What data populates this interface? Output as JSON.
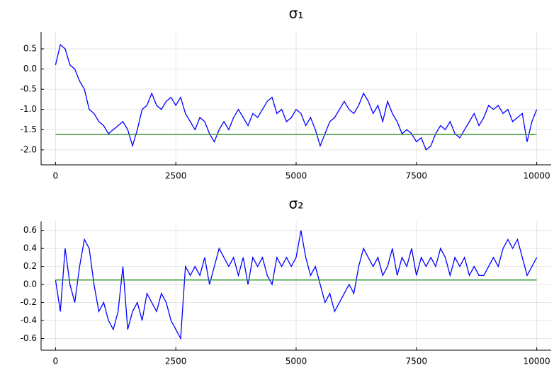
{
  "chart_data": [
    {
      "type": "line",
      "title": "σ₁",
      "x": [
        0,
        100,
        200,
        300,
        400,
        500,
        600,
        700,
        800,
        900,
        1000,
        1100,
        1200,
        1300,
        1400,
        1500,
        1600,
        1700,
        1800,
        1900,
        2000,
        2100,
        2200,
        2300,
        2400,
        2500,
        2600,
        2700,
        2800,
        2900,
        3000,
        3100,
        3200,
        3300,
        3400,
        3500,
        3600,
        3700,
        3800,
        3900,
        4000,
        4100,
        4200,
        4300,
        4400,
        4500,
        4600,
        4700,
        4800,
        4900,
        5000,
        5100,
        5200,
        5300,
        5400,
        5500,
        5600,
        5700,
        5800,
        5900,
        6000,
        6100,
        6200,
        6300,
        6400,
        6500,
        6600,
        6700,
        6800,
        6900,
        7000,
        7100,
        7200,
        7300,
        7400,
        7500,
        7600,
        7700,
        7800,
        7900,
        8000,
        8100,
        8200,
        8300,
        8400,
        8500,
        8600,
        8700,
        8800,
        8900,
        9000,
        9100,
        9200,
        9300,
        9400,
        9500,
        9600,
        9700,
        9800,
        9900,
        10000
      ],
      "values": [
        0.1,
        0.6,
        0.5,
        0.1,
        0.0,
        -0.3,
        -0.5,
        -1.0,
        -1.1,
        -1.3,
        -1.4,
        -1.6,
        -1.5,
        -1.4,
        -1.3,
        -1.5,
        -1.9,
        -1.5,
        -1.0,
        -0.9,
        -0.6,
        -0.9,
        -1.0,
        -0.8,
        -0.7,
        -0.9,
        -0.7,
        -1.1,
        -1.3,
        -1.5,
        -1.2,
        -1.3,
        -1.6,
        -1.8,
        -1.5,
        -1.3,
        -1.5,
        -1.2,
        -1.0,
        -1.2,
        -1.4,
        -1.1,
        -1.2,
        -1.0,
        -0.8,
        -0.7,
        -1.1,
        -1.0,
        -1.3,
        -1.2,
        -1.0,
        -1.1,
        -1.4,
        -1.2,
        -1.5,
        -1.9,
        -1.6,
        -1.3,
        -1.2,
        -1.0,
        -0.8,
        -1.0,
        -1.1,
        -0.9,
        -0.6,
        -0.8,
        -1.1,
        -0.9,
        -1.3,
        -0.8,
        -1.1,
        -1.3,
        -1.6,
        -1.5,
        -1.6,
        -1.8,
        -1.7,
        -2.0,
        -1.9,
        -1.6,
        -1.4,
        -1.5,
        -1.3,
        -1.6,
        -1.7,
        -1.5,
        -1.3,
        -1.1,
        -1.4,
        -1.2,
        -0.9,
        -1.0,
        -0.9,
        -1.1,
        -1.0,
        -1.3,
        -1.2,
        -1.1,
        -1.8,
        -1.3,
        -1.0
      ],
      "color": "#0000ff",
      "hline": -1.62,
      "hline_color": "#3a9a3a",
      "xlim": [
        -300,
        10300
      ],
      "xticks": [
        0,
        2500,
        5000,
        7500,
        10000
      ],
      "ylim": [
        -2.37,
        0.92
      ],
      "yticks": [
        0.5,
        {
          "value": 0,
          "label": "0.0"
        },
        -0.5,
        {
          "value": -1,
          "label": "-1.0"
        },
        -1.5,
        {
          "value": -2,
          "label": "-2.0"
        }
      ],
      "grid": true
    },
    {
      "type": "line",
      "title": "σ₂",
      "x": [
        0,
        100,
        200,
        300,
        400,
        500,
        600,
        700,
        800,
        900,
        1000,
        1100,
        1200,
        1300,
        1400,
        1500,
        1600,
        1700,
        1800,
        1900,
        2000,
        2100,
        2200,
        2300,
        2400,
        2500,
        2600,
        2700,
        2800,
        2900,
        3000,
        3100,
        3200,
        3300,
        3400,
        3500,
        3600,
        3700,
        3800,
        3900,
        4000,
        4100,
        4200,
        4300,
        4400,
        4500,
        4600,
        4700,
        4800,
        4900,
        5000,
        5100,
        5200,
        5300,
        5400,
        5500,
        5600,
        5700,
        5800,
        5900,
        6000,
        6100,
        6200,
        6300,
        6400,
        6500,
        6600,
        6700,
        6800,
        6900,
        7000,
        7100,
        7200,
        7300,
        7400,
        7500,
        7600,
        7700,
        7800,
        7900,
        8000,
        8100,
        8200,
        8300,
        8400,
        8500,
        8600,
        8700,
        8800,
        8900,
        9000,
        9100,
        9200,
        9300,
        9400,
        9500,
        9600,
        9700,
        9800,
        9900,
        10000
      ],
      "values": [
        0.05,
        -0.3,
        0.4,
        0.0,
        -0.2,
        0.2,
        0.5,
        0.4,
        0.0,
        -0.3,
        -0.2,
        -0.4,
        -0.5,
        -0.3,
        0.2,
        -0.5,
        -0.3,
        -0.2,
        -0.4,
        -0.1,
        -0.2,
        -0.3,
        -0.1,
        -0.2,
        -0.4,
        -0.5,
        -0.6,
        0.2,
        0.1,
        0.2,
        0.1,
        0.3,
        0.0,
        0.2,
        0.4,
        0.3,
        0.2,
        0.3,
        0.1,
        0.3,
        0.0,
        0.3,
        0.2,
        0.3,
        0.1,
        0.0,
        0.3,
        0.2,
        0.3,
        0.2,
        0.3,
        0.6,
        0.3,
        0.1,
        0.2,
        0.0,
        -0.2,
        -0.1,
        -0.3,
        -0.2,
        -0.1,
        0.0,
        -0.1,
        0.2,
        0.4,
        0.3,
        0.2,
        0.3,
        0.1,
        0.2,
        0.4,
        0.1,
        0.3,
        0.2,
        0.4,
        0.1,
        0.3,
        0.2,
        0.3,
        0.2,
        0.4,
        0.3,
        0.1,
        0.3,
        0.2,
        0.3,
        0.1,
        0.2,
        0.1,
        0.1,
        0.2,
        0.3,
        0.2,
        0.4,
        0.5,
        0.4,
        0.5,
        0.3,
        0.1,
        0.2,
        0.3
      ],
      "color": "#0000ff",
      "hline": 0.05,
      "hline_color": "#3a9a3a",
      "xlim": [
        -300,
        10300
      ],
      "xticks": [
        0,
        2500,
        5000,
        7500,
        10000
      ],
      "ylim": [
        -0.73,
        0.7
      ],
      "yticks": [
        0.6,
        0.4,
        0.2,
        {
          "value": 0,
          "label": "0.0"
        },
        -0.2,
        -0.4,
        -0.6
      ],
      "grid": true
    }
  ]
}
